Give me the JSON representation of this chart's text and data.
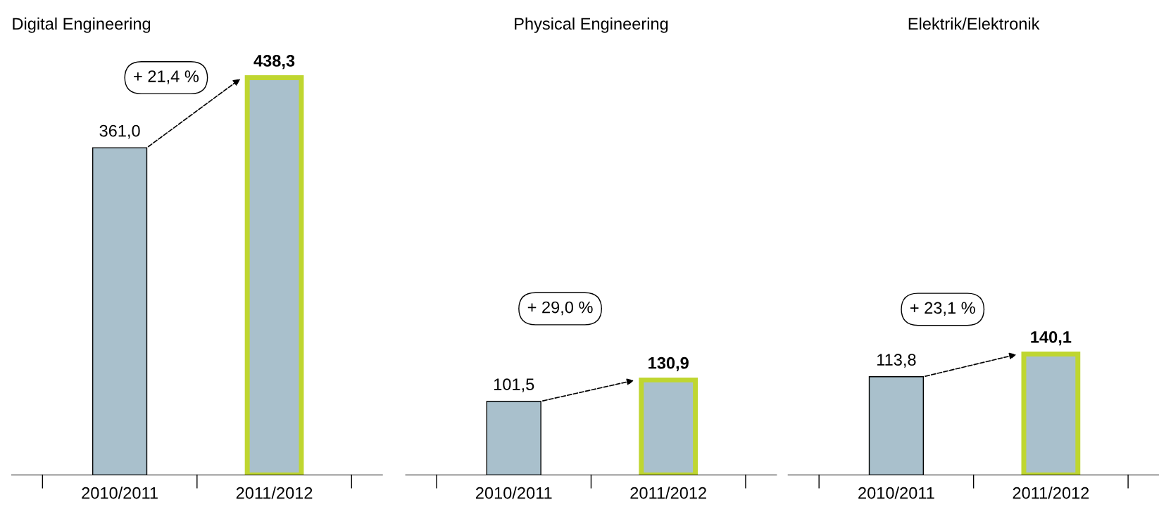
{
  "chart_data": [
    {
      "type": "bar",
      "title": "Digital Engineering",
      "categories": [
        "2010/2011",
        "2011/2012"
      ],
      "values": [
        361.0,
        438.3
      ],
      "value_labels": [
        "361,0",
        "438,3"
      ],
      "colors": [
        "#a9c0cc",
        "#a9c0cc"
      ],
      "annotations": [
        "+ 21,4 %"
      ],
      "grid": false,
      "legend": false
    },
    {
      "type": "bar",
      "title": "Physical Engineering",
      "categories": [
        "2010/2011",
        "2011/2012"
      ],
      "values": [
        101.5,
        130.9
      ],
      "value_labels": [
        "101,5",
        "130,9"
      ],
      "colors": [
        "#a9c0cc",
        "#a9c0cc"
      ],
      "annotations": [
        "+ 29,0 %"
      ],
      "grid": false,
      "legend": false
    },
    {
      "type": "bar",
      "title": "Elektrik/Elektronik",
      "categories": [
        "2010/2011",
        "2011/2012"
      ],
      "values": [
        113.8,
        140.1
      ],
      "value_labels": [
        "113,8",
        "140,1"
      ],
      "colors": [
        "#a9c0cc",
        "#a9c0cc"
      ],
      "annotations": [
        "+ 23,1 %"
      ],
      "grid": false,
      "legend": false
    }
  ]
}
